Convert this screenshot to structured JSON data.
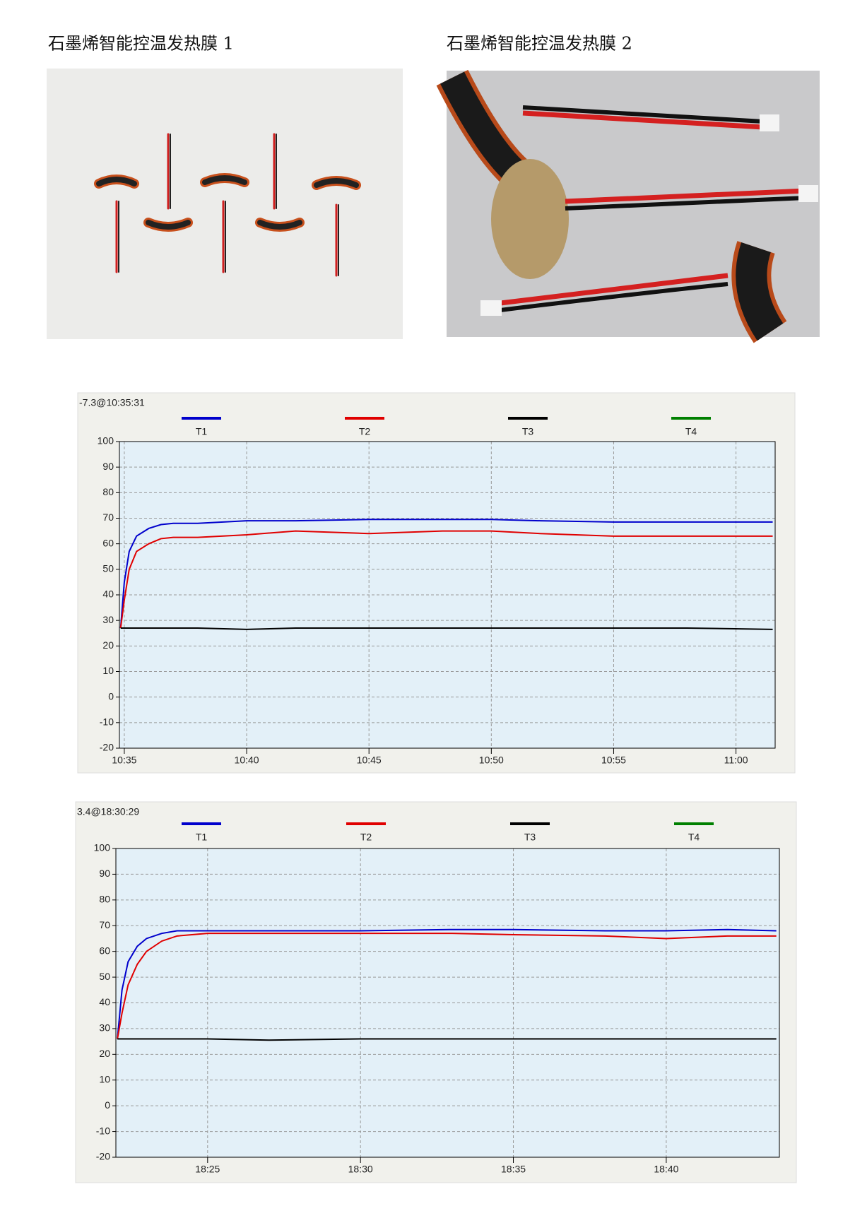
{
  "photos": [
    {
      "caption": "石墨烯智能控温发热膜 1"
    },
    {
      "caption": "石墨烯智能控温发热膜 2"
    }
  ],
  "chart_data": [
    {
      "type": "line",
      "header": "-7.3@10:35:31",
      "x": [
        634.85,
        635.0,
        635.2,
        635.5,
        636,
        636.5,
        637,
        638,
        640,
        642,
        645,
        648,
        650,
        652,
        655,
        658,
        661.5
      ],
      "series": [
        {
          "name": "T1",
          "color": "#0000cc",
          "values": [
            27,
            45,
            57,
            63,
            66,
            67.5,
            68,
            68,
            69,
            69,
            69.5,
            69.5,
            69.5,
            69,
            68.5,
            68.5,
            68.5
          ]
        },
        {
          "name": "T2",
          "color": "#e00000",
          "values": [
            27,
            38,
            50,
            57,
            60,
            62,
            62.5,
            62.5,
            63.5,
            65,
            64,
            65,
            65,
            64,
            63,
            63,
            63
          ]
        },
        {
          "name": "T3",
          "color": "#000000",
          "values": [
            27,
            27,
            27,
            27,
            27,
            27,
            27,
            27,
            26.5,
            27,
            27,
            27,
            27,
            27,
            27,
            27,
            26.5
          ]
        },
        {
          "name": "T4",
          "color": "#008000",
          "values": [
            null,
            null,
            null,
            null,
            null,
            null,
            null,
            null,
            null,
            null,
            null,
            null,
            null,
            null,
            null,
            null,
            null
          ]
        }
      ],
      "xlim": [
        634.8,
        661.6
      ],
      "xticks": [
        {
          "value": 635,
          "label": "10:35"
        },
        {
          "value": 640,
          "label": "10:40"
        },
        {
          "value": 645,
          "label": "10:45"
        },
        {
          "value": 650,
          "label": "10:50"
        },
        {
          "value": 655,
          "label": "10:55"
        },
        {
          "value": 660,
          "label": "11:00"
        }
      ],
      "ylim": [
        -20,
        100
      ],
      "yticks": [
        -20,
        -10,
        0,
        10,
        20,
        30,
        40,
        50,
        60,
        70,
        80,
        90,
        100
      ],
      "grid": true
    },
    {
      "type": "line",
      "header": "3.4@18:30:29",
      "x": [
        1102.05,
        1102.2,
        1102.4,
        1102.7,
        1103,
        1103.5,
        1104,
        1105,
        1107,
        1110,
        1113,
        1115,
        1118,
        1120,
        1122,
        1123.6
      ],
      "series": [
        {
          "name": "T1",
          "color": "#0000cc",
          "values": [
            26,
            45,
            56,
            62,
            65,
            67,
            68,
            68,
            68,
            68,
            68.5,
            68.5,
            68,
            68,
            68.5,
            68
          ]
        },
        {
          "name": "T2",
          "color": "#e00000",
          "values": [
            26,
            36,
            47,
            55,
            60,
            64,
            66,
            67,
            67,
            67,
            67,
            66.5,
            66,
            65,
            66,
            66
          ]
        },
        {
          "name": "T3",
          "color": "#000000",
          "values": [
            26,
            26,
            26,
            26,
            26,
            26,
            26,
            26,
            25.5,
            26,
            26,
            26,
            26,
            26,
            26,
            26
          ]
        },
        {
          "name": "T4",
          "color": "#008000",
          "values": [
            null,
            null,
            null,
            null,
            null,
            null,
            null,
            null,
            null,
            null,
            null,
            null,
            null,
            null,
            null,
            null
          ]
        }
      ],
      "xlim": [
        1102.0,
        1123.7
      ],
      "xticks": [
        {
          "value": 1105,
          "label": "18:25"
        },
        {
          "value": 1110,
          "label": "18:30"
        },
        {
          "value": 1115,
          "label": "18:35"
        },
        {
          "value": 1120,
          "label": "18:40"
        }
      ],
      "ylim": [
        -20,
        100
      ],
      "yticks": [
        -20,
        -10,
        0,
        10,
        20,
        30,
        40,
        50,
        60,
        70,
        80,
        90,
        100
      ],
      "grid": true
    }
  ]
}
